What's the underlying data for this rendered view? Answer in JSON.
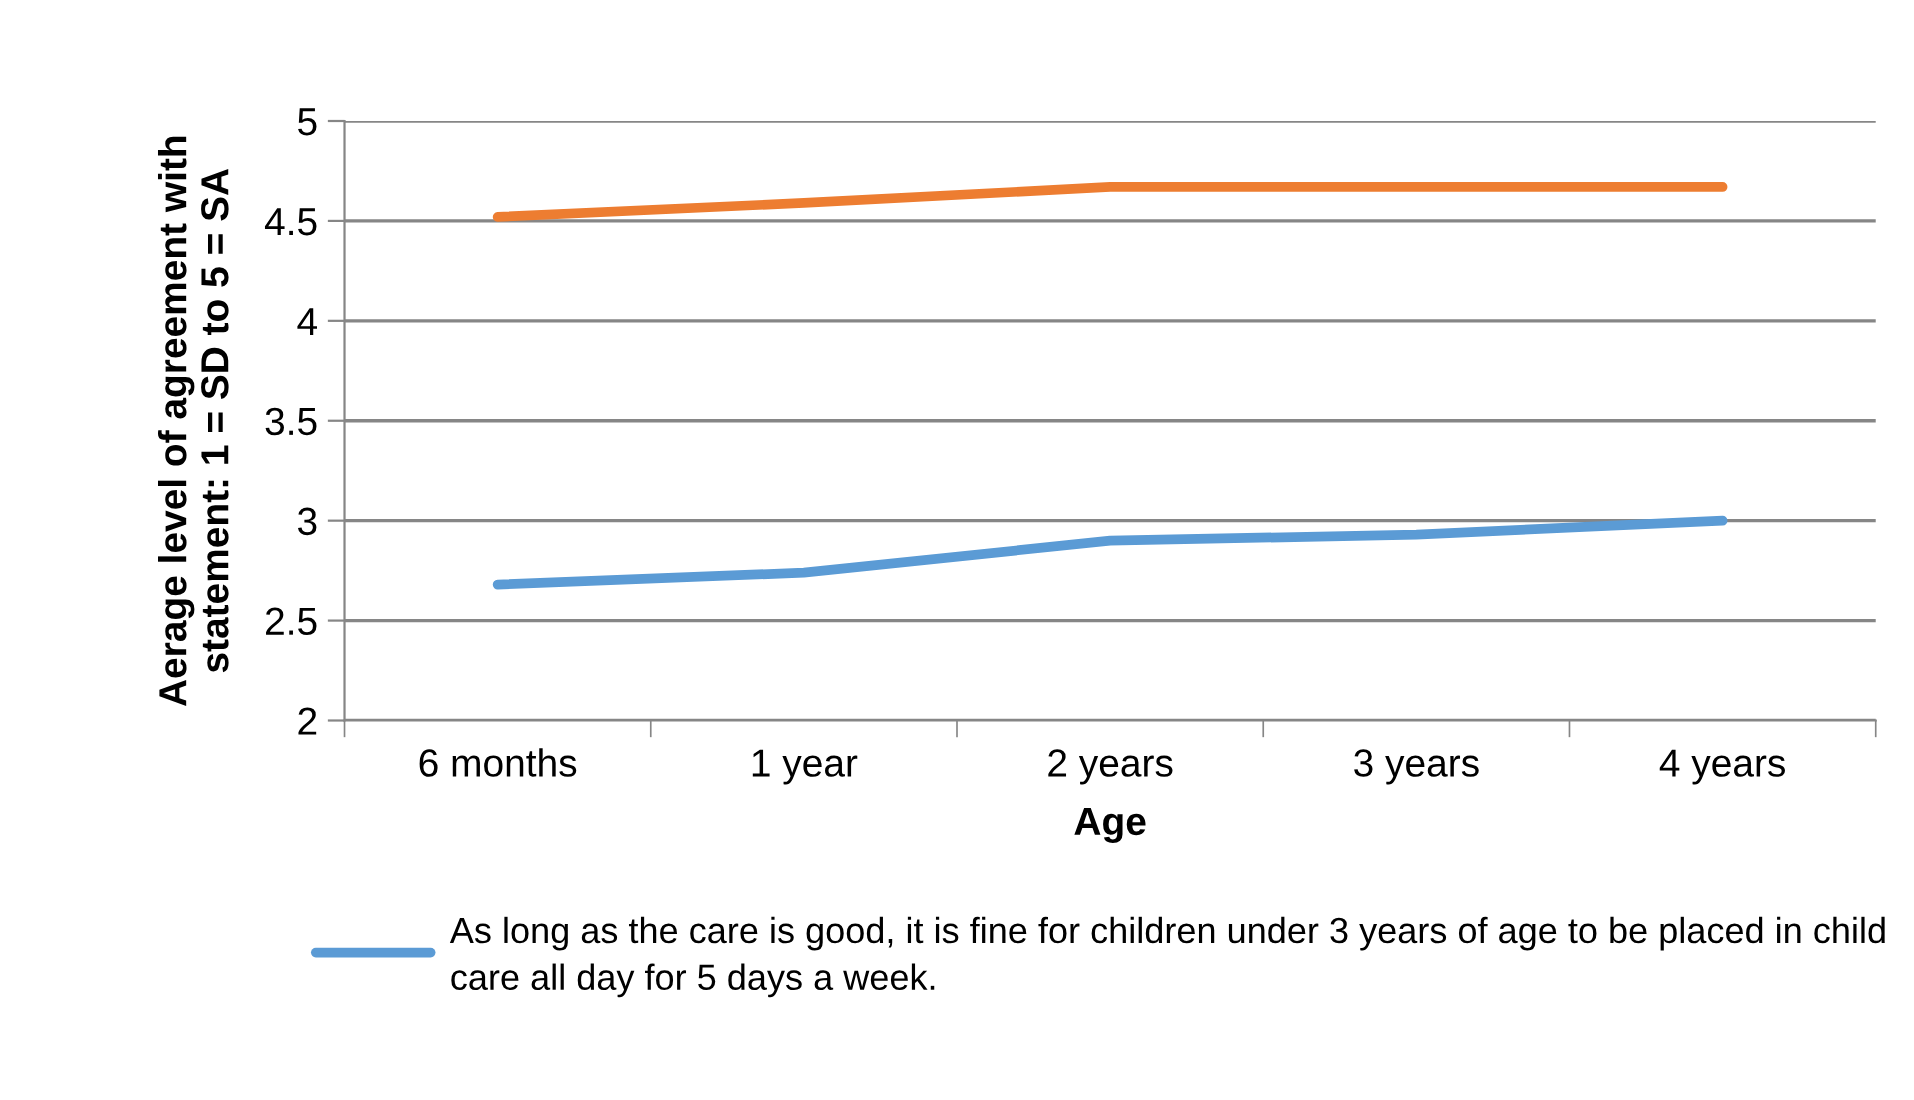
{
  "chart_data": {
    "type": "line",
    "xlabel": "Age",
    "ylabel": "Aerage level of agreement with\nstatement: 1 = SD to 5 = SA",
    "categories": [
      "6 months",
      "1 year",
      "2 years",
      "3 years",
      "4 years"
    ],
    "series": [
      {
        "name": "As long as the care is good, it is fine for children under 3 years of age to be placed in child care all day for 5 days a week.",
        "color": "#5b9bd5",
        "values": [
          2.68,
          2.74,
          2.9,
          2.93,
          3.0
        ]
      },
      {
        "color": "#ed7d31",
        "values": [
          4.52,
          4.59,
          4.67,
          4.67,
          4.67
        ]
      }
    ],
    "ylim": [
      2,
      5
    ],
    "yticks": [
      2,
      2.5,
      3,
      3.5,
      4,
      4.5,
      5
    ],
    "grid": "y",
    "legend": "bottom",
    "marker": "none",
    "line_style": "solid"
  }
}
